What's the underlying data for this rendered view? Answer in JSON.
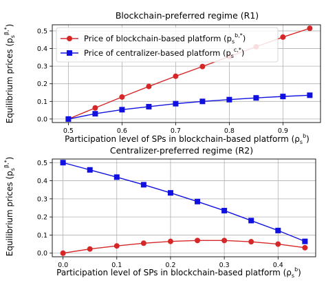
{
  "chart_data": [
    {
      "type": "line",
      "title": "Blockchain-preferred regime (R1)",
      "xlabel": "Participation level of SPs in blockchain-based platform (ρ",
      "xlabel_sub": "s",
      "xlabel_sup": "b",
      "xlabel_end": ")",
      "ylabel": "Equilibrium prices (p",
      "ylabel_sub": "s",
      "ylabel_sup": "β,*",
      "ylabel_end": ")",
      "x": [
        0.5,
        0.55,
        0.6,
        0.65,
        0.7,
        0.75,
        0.8,
        0.85,
        0.9,
        0.95
      ],
      "series": [
        {
          "name": "Price of blockchain-based platform (p",
          "name_sub": "s",
          "name_sup": "b,*",
          "name_end": ")",
          "values": [
            0.0,
            0.063,
            0.125,
            0.185,
            0.243,
            0.298,
            0.355,
            0.41,
            0.465,
            0.515
          ],
          "color": "#d62728",
          "marker": "circle"
        },
        {
          "name": "Price of centralizer-based platform (p",
          "name_sub": "s",
          "name_sup": "c,*",
          "name_end": ")",
          "values": [
            0.0,
            0.03,
            0.053,
            0.07,
            0.087,
            0.1,
            0.11,
            0.12,
            0.128,
            0.135
          ],
          "color": "#1010e0",
          "marker": "square"
        }
      ],
      "xlim": [
        0.47,
        0.97
      ],
      "ylim": [
        -0.02,
        0.535
      ],
      "xticks": [
        0.5,
        0.6,
        0.7,
        0.8,
        0.9
      ],
      "xtick_labels": [
        "0.5",
        "0.6",
        "0.7",
        "0.8",
        "0.9"
      ],
      "yticks": [
        0.0,
        0.1,
        0.2,
        0.3,
        0.4,
        0.5
      ],
      "ytick_labels": [
        "0.0",
        "0.1",
        "0.2",
        "0.3",
        "0.4",
        "0.5"
      ],
      "grid": true,
      "legend": "top-left"
    },
    {
      "type": "line",
      "title": "Centralizer-preferred regime (R2)",
      "xlabel": "Participation level of SPs in blockchain-based platform (ρ",
      "xlabel_sub": "s",
      "xlabel_sup": "b",
      "xlabel_end": ")",
      "ylabel": "Equilibrium prices (p",
      "ylabel_sub": "s",
      "ylabel_sup": "β,*",
      "ylabel_end": ")",
      "x": [
        0.0,
        0.05,
        0.1,
        0.15,
        0.2,
        0.25,
        0.3,
        0.35,
        0.4,
        0.45
      ],
      "series": [
        {
          "name": "Price of blockchain-based platform",
          "values": [
            0.0,
            0.023,
            0.04,
            0.055,
            0.065,
            0.07,
            0.07,
            0.063,
            0.05,
            0.03
          ],
          "color": "#d62728",
          "marker": "circle"
        },
        {
          "name": "Price of centralizer-based platform",
          "values": [
            0.5,
            0.46,
            0.42,
            0.378,
            0.333,
            0.285,
            0.235,
            0.18,
            0.125,
            0.065
          ],
          "color": "#1010e0",
          "marker": "square"
        }
      ],
      "xlim": [
        -0.02,
        0.47
      ],
      "ylim": [
        -0.02,
        0.52
      ],
      "xticks": [
        0.0,
        0.1,
        0.2,
        0.3,
        0.4
      ],
      "xtick_labels": [
        "0.0",
        "0.1",
        "0.2",
        "0.3",
        "0.4"
      ],
      "yticks": [
        0.0,
        0.1,
        0.2,
        0.3,
        0.4,
        0.5
      ],
      "ytick_labels": [
        "0.0",
        "0.1",
        "0.2",
        "0.3",
        "0.4",
        "0.5"
      ],
      "grid": true,
      "legend": "none"
    }
  ]
}
